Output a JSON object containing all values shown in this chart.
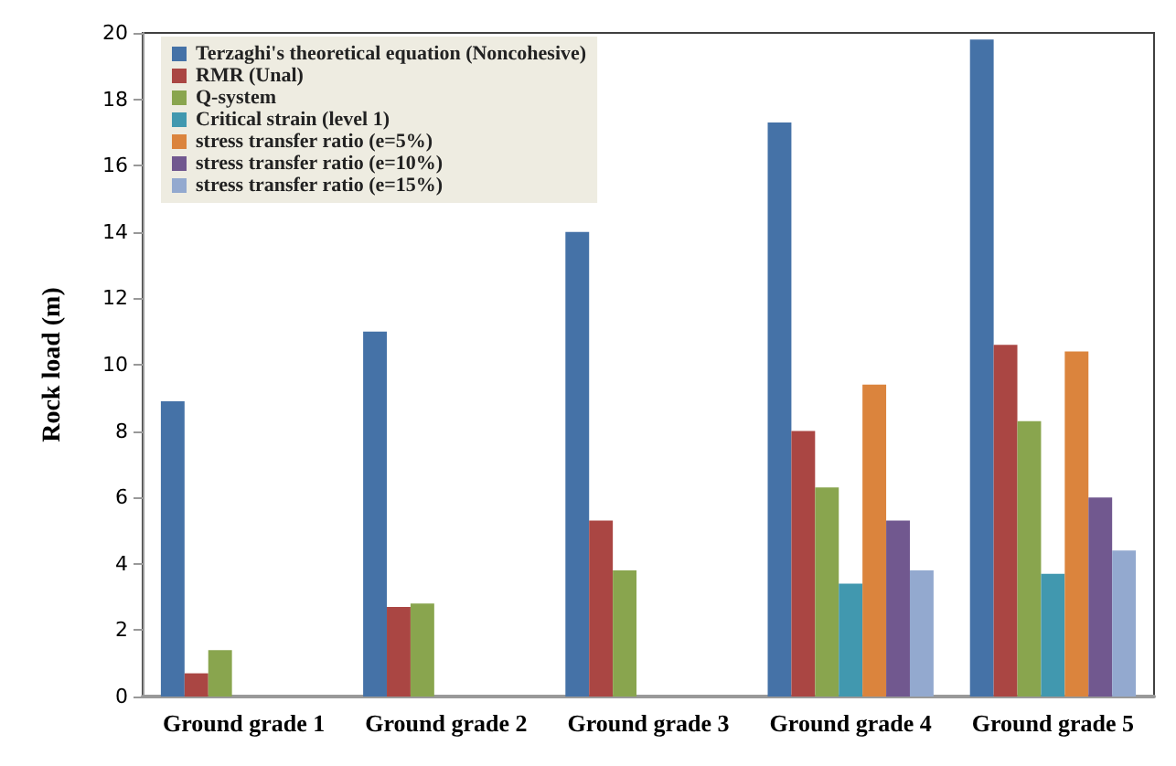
{
  "chart_data": {
    "type": "bar",
    "ylabel": "Rock load (m)",
    "categories": [
      "Ground grade 1",
      "Ground grade 2",
      "Ground grade 3",
      "Ground grade 4",
      "Ground grade 5"
    ],
    "series": [
      {
        "name": "Terzaghi's theoretical equation (Noncohesive)",
        "color": "#4572a7",
        "values": [
          8.9,
          11,
          14,
          17.3,
          19.8
        ]
      },
      {
        "name": "RMR (Unal)",
        "color": "#aa4643",
        "values": [
          0.7,
          2.7,
          5.3,
          8.0,
          10.6
        ]
      },
      {
        "name": "Q-system",
        "color": "#89a54e",
        "values": [
          1.4,
          2.8,
          3.8,
          6.3,
          8.3
        ]
      },
      {
        "name": "Critical strain (level 1)",
        "color": "#4198af",
        "values": [
          null,
          null,
          null,
          3.4,
          3.7
        ]
      },
      {
        "name": "stress transfer ratio (e=5%)",
        "color": "#db843d",
        "values": [
          null,
          null,
          null,
          9.4,
          10.4
        ]
      },
      {
        "name": "stress transfer ratio (e=10%)",
        "color": "#71588f",
        "values": [
          null,
          null,
          null,
          5.3,
          6.0
        ]
      },
      {
        "name": "stress transfer ratio (e=15%)",
        "color": "#93a9cf",
        "values": [
          null,
          null,
          null,
          3.8,
          4.4
        ]
      }
    ],
    "ylim": [
      0,
      20
    ],
    "yticks": [
      0,
      2,
      4,
      6,
      8,
      10,
      12,
      14,
      16,
      18,
      20
    ],
    "grid": false,
    "legend": "top left"
  }
}
